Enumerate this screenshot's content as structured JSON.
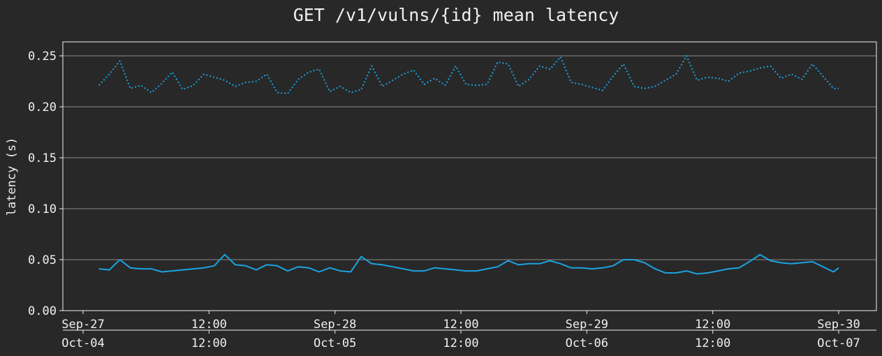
{
  "chart_data": {
    "type": "line",
    "title": "GET /v1/vulns/{id} mean latency",
    "xlabel": "",
    "ylabel": "latency (s)",
    "ylim": [
      0,
      0.26
    ],
    "yticks": [
      "0.00",
      "0.05",
      "0.10",
      "0.15",
      "0.20",
      "0.25"
    ],
    "grid": "horizontal",
    "x_hours_range": [
      -8,
      72
    ],
    "x_axis_primary": {
      "ticks": [
        {
          "hours": 0,
          "label": "Sep-27"
        },
        {
          "hours": 12,
          "label": "12:00"
        },
        {
          "hours": 24,
          "label": "Sep-28"
        },
        {
          "hours": 36,
          "label": "12:00"
        },
        {
          "hours": 48,
          "label": "Sep-29"
        },
        {
          "hours": 60,
          "label": "12:00"
        },
        {
          "hours": 72,
          "label": "Sep-30"
        }
      ]
    },
    "x_axis_secondary": {
      "ticks": [
        {
          "hours": 0,
          "label": "Oct-04"
        },
        {
          "hours": 12,
          "label": "12:00"
        },
        {
          "hours": 24,
          "label": "Oct-05"
        },
        {
          "hours": 36,
          "label": "12:00"
        },
        {
          "hours": 48,
          "label": "Oct-06"
        },
        {
          "hours": 60,
          "label": "12:00"
        },
        {
          "hours": 72,
          "label": "Oct-07"
        }
      ]
    },
    "series": [
      {
        "style": "solid",
        "color": "#1ba3e0",
        "x_hours": [
          1.5,
          2.5,
          3.5,
          4.5,
          5.5,
          6.5,
          7.5,
          8.5,
          9.5,
          10.5,
          11.5,
          12.5,
          13.5,
          14.5,
          15.5,
          16.5,
          17.5,
          18.5,
          19.5,
          20.5,
          21.5,
          22.5,
          23.5,
          24.5,
          25.5,
          26.5,
          27.5,
          28.5,
          29.5,
          30.5,
          31.5,
          32.5,
          33.5,
          34.5,
          35.5,
          36.5,
          37.5,
          38.5,
          39.5,
          40.5,
          41.5,
          42.5,
          43.5,
          44.5,
          45.5,
          46.5,
          47.5,
          48.5,
          49.5,
          50.5,
          51.5,
          52.5,
          53.5,
          54.5,
          55.5,
          56.5,
          57.5,
          58.5,
          59.5,
          60.5,
          61.5,
          62.5,
          63.5,
          64.5,
          65.5,
          66.5,
          67.5,
          68.5,
          69.5,
          70.5,
          71.5,
          72.0
        ],
        "values": [
          0.041,
          0.04,
          0.05,
          0.042,
          0.041,
          0.041,
          0.038,
          0.039,
          0.04,
          0.041,
          0.042,
          0.044,
          0.055,
          0.045,
          0.044,
          0.04,
          0.045,
          0.044,
          0.039,
          0.043,
          0.042,
          0.038,
          0.042,
          0.039,
          0.038,
          0.053,
          0.046,
          0.045,
          0.043,
          0.041,
          0.039,
          0.039,
          0.042,
          0.041,
          0.04,
          0.039,
          0.039,
          0.041,
          0.043,
          0.049,
          0.045,
          0.046,
          0.046,
          0.049,
          0.046,
          0.042,
          0.042,
          0.041,
          0.042,
          0.044,
          0.05,
          0.05,
          0.047,
          0.041,
          0.037,
          0.037,
          0.039,
          0.036,
          0.037,
          0.039,
          0.041,
          0.042,
          0.048,
          0.055,
          0.049,
          0.047,
          0.046,
          0.047,
          0.048,
          0.043,
          0.038,
          0.042
        ]
      },
      {
        "style": "dotted",
        "color": "#1ba3e0",
        "x_hours": [
          1.5,
          2.5,
          3.5,
          4.5,
          5.5,
          6.5,
          7.5,
          8.5,
          9.5,
          10.5,
          11.5,
          12.5,
          13.5,
          14.5,
          15.5,
          16.5,
          17.5,
          18.5,
          19.5,
          20.5,
          21.5,
          22.5,
          23.5,
          24.5,
          25.5,
          26.5,
          27.5,
          28.5,
          29.5,
          30.5,
          31.5,
          32.5,
          33.5,
          34.5,
          35.5,
          36.5,
          37.5,
          38.5,
          39.5,
          40.5,
          41.5,
          42.5,
          43.5,
          44.5,
          45.5,
          46.5,
          47.5,
          48.5,
          49.5,
          50.5,
          51.5,
          52.5,
          53.5,
          54.5,
          55.5,
          56.5,
          57.5,
          58.5,
          59.5,
          60.5,
          61.5,
          62.5,
          63.5,
          64.5,
          65.5,
          66.5,
          67.5,
          68.5,
          69.5,
          70.5,
          71.5,
          72.0
        ],
        "values": [
          0.221,
          0.232,
          0.245,
          0.218,
          0.221,
          0.214,
          0.223,
          0.234,
          0.217,
          0.221,
          0.232,
          0.229,
          0.226,
          0.22,
          0.224,
          0.225,
          0.232,
          0.214,
          0.213,
          0.227,
          0.234,
          0.237,
          0.215,
          0.22,
          0.214,
          0.217,
          0.24,
          0.22,
          0.226,
          0.232,
          0.236,
          0.222,
          0.228,
          0.221,
          0.24,
          0.222,
          0.221,
          0.222,
          0.244,
          0.242,
          0.22,
          0.227,
          0.24,
          0.237,
          0.249,
          0.224,
          0.222,
          0.219,
          0.216,
          0.23,
          0.242,
          0.22,
          0.218,
          0.22,
          0.226,
          0.232,
          0.25,
          0.226,
          0.229,
          0.228,
          0.225,
          0.233,
          0.235,
          0.238,
          0.24,
          0.228,
          0.232,
          0.227,
          0.242,
          0.23,
          0.218,
          0.218
        ]
      }
    ]
  }
}
